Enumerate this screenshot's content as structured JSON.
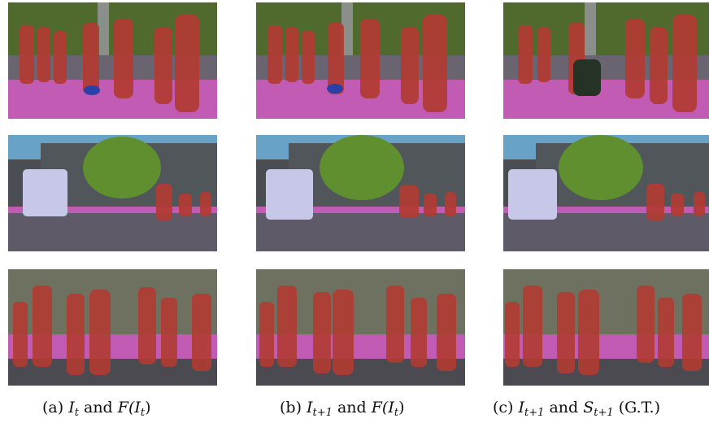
{
  "figure": {
    "captions": [
      {
        "prefix": "(a) ",
        "a": "I",
        "a_sub": "t",
        "mid": " and ",
        "b": "F(I",
        "b_sub": "t",
        "end": ")"
      },
      {
        "prefix": "(b) ",
        "a": "I",
        "a_sub": "t+1",
        "mid": " and ",
        "b": "F(I",
        "b_sub": "t",
        "end": ")"
      },
      {
        "prefix": "(c) ",
        "a": "I",
        "a_sub": "t+1",
        "mid": " and ",
        "b": "S",
        "b_sub": "t+1",
        "end": " (G.T.)"
      }
    ],
    "rows": [
      {
        "scene": "pedestrians-crosswalk"
      },
      {
        "scene": "street-van-cyclist"
      },
      {
        "scene": "crowd-walking"
      }
    ],
    "overlay_colors": {
      "person": "#c0392b",
      "sidewalk": "#d04fc4",
      "vegetation": "#6b8e23",
      "road": "#5e5a68",
      "building": "#555a5c",
      "vehicle": "#c7c8e8"
    }
  }
}
